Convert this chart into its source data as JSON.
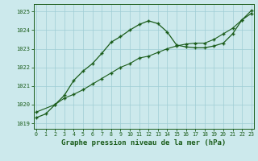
{
  "line1_x": [
    0,
    1,
    2,
    3,
    4,
    5,
    6,
    7,
    8,
    9,
    10,
    11,
    12,
    13,
    14,
    15,
    16,
    17,
    18,
    19,
    20,
    21,
    22,
    23
  ],
  "line1_y": [
    1019.3,
    1019.5,
    1020.0,
    1020.5,
    1021.3,
    1021.8,
    1022.2,
    1022.75,
    1023.35,
    1023.65,
    1024.0,
    1024.3,
    1024.5,
    1024.35,
    1023.9,
    1023.2,
    1023.1,
    1023.05,
    1023.05,
    1023.15,
    1023.3,
    1023.8,
    1024.55,
    1024.9
  ],
  "line2_x": [
    0,
    2,
    3,
    4,
    5,
    6,
    7,
    8,
    9,
    10,
    11,
    12,
    13,
    14,
    15,
    16,
    17,
    18,
    19,
    20,
    21,
    22,
    23
  ],
  "line2_y": [
    1019.6,
    1020.0,
    1020.35,
    1020.55,
    1020.8,
    1021.1,
    1021.4,
    1021.7,
    1022.0,
    1022.2,
    1022.5,
    1022.6,
    1022.8,
    1023.0,
    1023.15,
    1023.25,
    1023.3,
    1023.3,
    1023.5,
    1023.8,
    1024.1,
    1024.55,
    1025.05
  ],
  "background_color": "#cce9ec",
  "grid_color": "#9fcdd4",
  "xlabel": "Graphe pression niveau de la mer (hPa)",
  "ylim": [
    1018.7,
    1025.4
  ],
  "xlim": [
    -0.3,
    23.3
  ],
  "yticks": [
    1019,
    1020,
    1021,
    1022,
    1023,
    1024,
    1025
  ],
  "xticks": [
    0,
    1,
    2,
    3,
    4,
    5,
    6,
    7,
    8,
    9,
    10,
    11,
    12,
    13,
    14,
    15,
    16,
    17,
    18,
    19,
    20,
    21,
    22,
    23
  ],
  "line_color": "#1a5c1a",
  "tick_fontsize": 5.0,
  "xlabel_fontsize": 6.5
}
